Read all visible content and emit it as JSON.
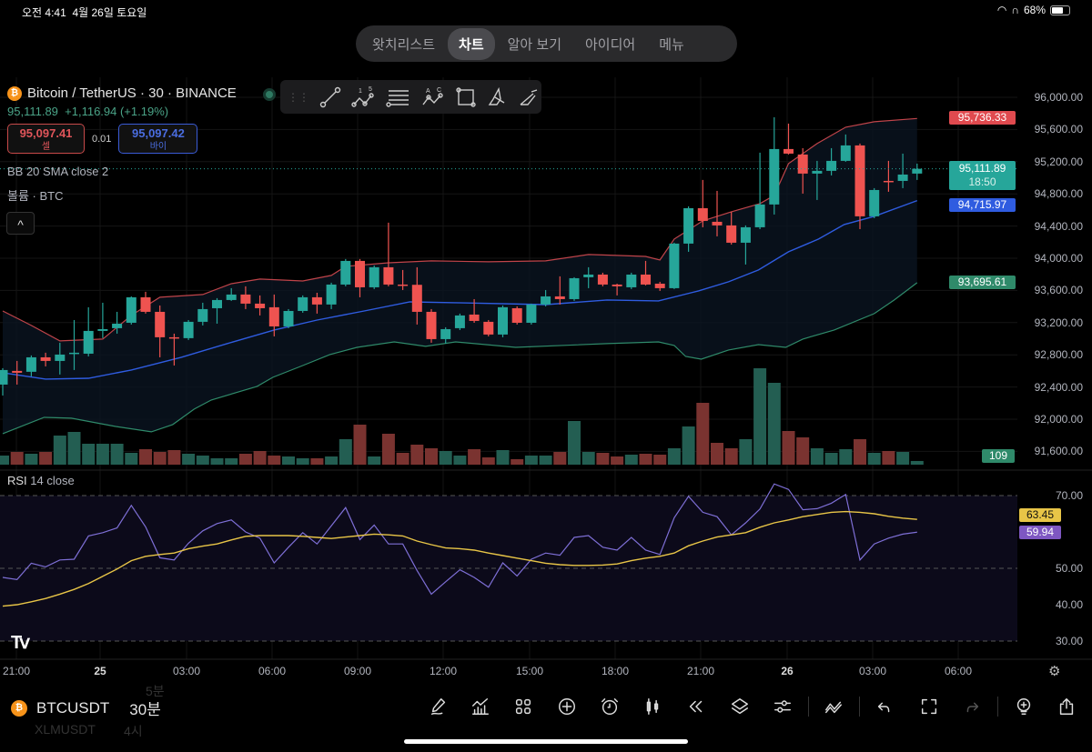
{
  "status_bar": {
    "time": "오전 4:41",
    "date": "4월 26일 토요일",
    "battery": "68%",
    "battery_level": 0.68
  },
  "tabs": [
    {
      "label": "왓치리스트"
    },
    {
      "label": "차트",
      "active": true
    },
    {
      "label": "알아 보기"
    },
    {
      "label": "아이디어"
    },
    {
      "label": "메뉴"
    }
  ],
  "legend": {
    "title": "Bitcoin / TetherUS · 30 · BINANCE",
    "price": "95,111.89",
    "change": "+1,116.94 (+1.19%)",
    "sell_price": "95,097.41",
    "sell_label": "셀",
    "spread": "0.01",
    "buy_price": "95,097.42",
    "buy_label": "바이",
    "bb_indicator": "BB 20 SMA close 2",
    "volume_indicator": "볼륨 · BTC",
    "rsi_indicator_name": "RSI",
    "rsi_indicator_params": "14 close"
  },
  "drawing_tools": [
    "trend-line",
    "xabcd-pattern",
    "fib-retracement",
    "abcd-pattern",
    "rectangle",
    "brush",
    "highlighter"
  ],
  "price_axis": {
    "labels": [
      "96,000.00",
      "95,600.00",
      "95,200.00",
      "94,800.00",
      "94,400.00",
      "94,000.00",
      "93,600.00",
      "93,200.00",
      "92,800.00",
      "92,400.00",
      "92,000.00",
      "91,600.00"
    ],
    "badges": {
      "bb_upper": "95,736.33",
      "last_price": "95,111.89",
      "countdown": "18:50",
      "bb_basis": "94,715.97",
      "bb_lower": "93,695.61",
      "volume": "109"
    }
  },
  "rsi_axis": {
    "labels": [
      "70.00",
      "50.00",
      "40.00",
      "30.00"
    ],
    "rsi_value": "59.94",
    "rsi_ma_value": "63.45"
  },
  "time_axis": [
    {
      "label": "21:00"
    },
    {
      "label": "25",
      "bold": true
    },
    {
      "label": "03:00"
    },
    {
      "label": "06:00"
    },
    {
      "label": "09:00"
    },
    {
      "label": "12:00"
    },
    {
      "label": "15:00"
    },
    {
      "label": "18:00"
    },
    {
      "label": "21:00"
    },
    {
      "label": "26",
      "bold": true
    },
    {
      "label": "03:00"
    },
    {
      "label": "06:00"
    }
  ],
  "colors": {
    "up": "#26a69a",
    "down": "#ef5350",
    "bb_upper": "#c0444a",
    "bb_basis": "#2f5ce0",
    "bb_lower": "#2f8a6a",
    "rsi": "#7e6fd6",
    "rsi_ma": "#e8c547"
  },
  "chart_data": {
    "type": "candlestick",
    "symbol": "BTCUSDT",
    "interval": "30",
    "ylim": [
      91500,
      96200
    ],
    "ohlc": [
      [
        92430,
        92634,
        92294,
        92611
      ],
      [
        92600,
        92724,
        92430,
        92577
      ],
      [
        92589,
        92792,
        92532,
        92769
      ],
      [
        92769,
        92826,
        92656,
        92724
      ],
      [
        92724,
        92950,
        92555,
        92803
      ],
      [
        92814,
        93232,
        92611,
        92826
      ],
      [
        92814,
        93391,
        92780,
        93097
      ],
      [
        93097,
        93447,
        93007,
        93119
      ],
      [
        93131,
        93334,
        93063,
        93187
      ],
      [
        93198,
        93526,
        93176,
        93515
      ],
      [
        93515,
        93583,
        93312,
        93334
      ],
      [
        93334,
        93413,
        92769,
        93018
      ],
      [
        93018,
        93063,
        92667,
        93007
      ],
      [
        93007,
        93232,
        92984,
        93210
      ],
      [
        93210,
        93447,
        93165,
        93368
      ],
      [
        93379,
        93504,
        93187,
        93481
      ],
      [
        93481,
        93628,
        93470,
        93549
      ],
      [
        93549,
        93651,
        93368,
        93436
      ],
      [
        93436,
        93538,
        93289,
        93379
      ],
      [
        93391,
        93549,
        93029,
        93153
      ],
      [
        93153,
        93368,
        93131,
        93345
      ],
      [
        93345,
        93538,
        93323,
        93515
      ],
      [
        93515,
        93571,
        93312,
        93425
      ],
      [
        93425,
        93696,
        93368,
        93673
      ],
      [
        93673,
        93990,
        93651,
        93967
      ],
      [
        93967,
        93990,
        93515,
        93639
      ],
      [
        93639,
        93910,
        93617,
        93888
      ],
      [
        93888,
        94442,
        93651,
        93673
      ],
      [
        93673,
        93854,
        93605,
        93670
      ],
      [
        93670,
        93888,
        93176,
        93334
      ],
      [
        93334,
        93368,
        92950,
        92995
      ],
      [
        92995,
        93142,
        92939,
        93119
      ],
      [
        93131,
        93312,
        93108,
        93289
      ],
      [
        93300,
        93492,
        93198,
        93221
      ],
      [
        93210,
        93232,
        93029,
        93052
      ],
      [
        93052,
        93413,
        93018,
        93391
      ],
      [
        93379,
        93402,
        93176,
        93198
      ],
      [
        93198,
        93436,
        93176,
        93425
      ],
      [
        93425,
        93605,
        93402,
        93526
      ],
      [
        93526,
        93775,
        93425,
        93492
      ],
      [
        93492,
        93764,
        93470,
        93752
      ],
      [
        93764,
        93888,
        93628,
        93797
      ],
      [
        93797,
        93820,
        93651,
        93673
      ],
      [
        93673,
        93684,
        93538,
        93651
      ],
      [
        93639,
        93820,
        93617,
        93797
      ],
      [
        93797,
        93967,
        93662,
        93673
      ],
      [
        93684,
        93707,
        93594,
        93628
      ],
      [
        93628,
        94193,
        93617,
        94182
      ],
      [
        94182,
        94645,
        94080,
        94622
      ],
      [
        94622,
        94973,
        94385,
        94464
      ],
      [
        94453,
        94837,
        94272,
        94408
      ],
      [
        94408,
        94577,
        94170,
        94193
      ],
      [
        94193,
        94408,
        93922,
        94385
      ],
      [
        94385,
        95312,
        94362,
        94668
      ],
      [
        94668,
        95752,
        94543,
        95357
      ],
      [
        95357,
        95673,
        95289,
        95300
      ],
      [
        95289,
        95368,
        94803,
        95052
      ],
      [
        95052,
        95210,
        94724,
        95086
      ],
      [
        95086,
        95368,
        95029,
        95210
      ],
      [
        95210,
        95538,
        95199,
        95402
      ],
      [
        95402,
        95425,
        94362,
        94521
      ],
      [
        94521,
        94871,
        94498,
        94848
      ],
      [
        94961,
        95210,
        94826,
        94950
      ],
      [
        94961,
        95300,
        94871,
        95040
      ],
      [
        95052,
        95176,
        94973,
        95111.89
      ]
    ],
    "volume": [
      270,
      378,
      324,
      378,
      864,
      972,
      621,
      621,
      621,
      351,
      459,
      378,
      432,
      324,
      270,
      189,
      189,
      324,
      405,
      270,
      243,
      189,
      189,
      243,
      756,
      1188,
      243,
      918,
      351,
      594,
      486,
      405,
      270,
      459,
      216,
      432,
      162,
      270,
      270,
      378,
      1296,
      378,
      351,
      243,
      297,
      324,
      297,
      486,
      1134,
      1836,
      648,
      486,
      756,
      2862,
      2430,
      999,
      810,
      486,
      351,
      459,
      756,
      351,
      405,
      378,
      109
    ],
    "bollinger": {
      "upper": [
        [
          0,
          93345
        ],
        [
          2,
          93165
        ],
        [
          4,
          92973
        ],
        [
          7,
          92995
        ],
        [
          9,
          93289
        ],
        [
          11,
          93515
        ],
        [
          14,
          93549
        ],
        [
          16,
          93684
        ],
        [
          18,
          93741
        ],
        [
          21,
          93718
        ],
        [
          23,
          93786
        ],
        [
          24,
          93899
        ],
        [
          27,
          93944
        ],
        [
          30,
          93967
        ],
        [
          34,
          93956
        ],
        [
          38,
          93967
        ],
        [
          41,
          94046
        ],
        [
          43,
          94035
        ],
        [
          45,
          94023
        ],
        [
          46,
          93978
        ],
        [
          47,
          94238
        ],
        [
          49,
          94464
        ],
        [
          51,
          94577
        ],
        [
          53,
          94679
        ],
        [
          54,
          94781
        ],
        [
          55,
          95176
        ],
        [
          57,
          95425
        ],
        [
          59,
          95628
        ],
        [
          61,
          95696
        ],
        [
          64,
          95736.33
        ]
      ],
      "basis": [
        [
          0,
          92577
        ],
        [
          3,
          92498
        ],
        [
          6,
          92509
        ],
        [
          9,
          92611
        ],
        [
          12.5,
          92769
        ],
        [
          15.7,
          92939
        ],
        [
          19,
          93108
        ],
        [
          22,
          93232
        ],
        [
          25.3,
          93345
        ],
        [
          28.5,
          93458
        ],
        [
          31.7,
          93447
        ],
        [
          38,
          93424
        ],
        [
          42.3,
          93481
        ],
        [
          45.9,
          93470
        ],
        [
          48.7,
          93594
        ],
        [
          50.8,
          93707
        ],
        [
          52.9,
          93854
        ],
        [
          55,
          94080
        ],
        [
          57.1,
          94238
        ],
        [
          58.9,
          94419
        ],
        [
          61,
          94521
        ],
        [
          64,
          94715.97
        ]
      ],
      "lower": [
        [
          0,
          91820
        ],
        [
          2.9,
          92023
        ],
        [
          4.8,
          92012
        ],
        [
          7.9,
          91910
        ],
        [
          10.4,
          91843
        ],
        [
          11.9,
          91933
        ],
        [
          13.4,
          92125
        ],
        [
          14.6,
          92238
        ],
        [
          17.8,
          92408
        ],
        [
          18.9,
          92520
        ],
        [
          21,
          92667
        ],
        [
          22.9,
          92803
        ],
        [
          24.8,
          92893
        ],
        [
          27.4,
          92961
        ],
        [
          29.6,
          92905
        ],
        [
          31.7,
          92961
        ],
        [
          35.9,
          92893
        ],
        [
          42.3,
          92939
        ],
        [
          45.9,
          92961
        ],
        [
          47,
          92916
        ],
        [
          47.8,
          92780
        ],
        [
          48.9,
          92746
        ],
        [
          50.8,
          92860
        ],
        [
          52.9,
          92927
        ],
        [
          54.8,
          92893
        ],
        [
          56,
          92995
        ],
        [
          58.2,
          93108
        ],
        [
          61,
          93312
        ],
        [
          62.4,
          93481
        ],
        [
          64,
          93695.61
        ]
      ]
    },
    "rsi": [
      47.5,
      46.9,
      51.4,
      50.4,
      52.3,
      52.5,
      58.9,
      59.8,
      61.1,
      67.3,
      61.4,
      52.9,
      52.3,
      56.9,
      60.3,
      62.3,
      63.3,
      60,
      58.3,
      51.5,
      55.8,
      59.8,
      56.7,
      61.7,
      66.7,
      57.9,
      61.9,
      56.7,
      56.7,
      49.4,
      42.9,
      46.3,
      49.6,
      47.5,
      44.8,
      51.5,
      47.9,
      52.5,
      54.2,
      53.6,
      58.5,
      59,
      55.8,
      55,
      58.5,
      55,
      53.8,
      63.9,
      69.8,
      65.4,
      64.2,
      59.2,
      62.5,
      66.3,
      73.2,
      71.7,
      66.1,
      66.4,
      67.9,
      70.3,
      52.3,
      56.7,
      58.3,
      59.4,
      59.94
    ],
    "rsi_ma": [
      39.6,
      40,
      40.8,
      41.7,
      42.9,
      44.2,
      45.8,
      47.8,
      49.8,
      52.1,
      53.3,
      53.8,
      54.2,
      55.4,
      56.1,
      56.7,
      57.8,
      58.8,
      59,
      59,
      59,
      58.8,
      58.5,
      58.2,
      58.6,
      59,
      59.4,
      59.2,
      58.9,
      57.5,
      56.5,
      55.6,
      55.4,
      55,
      54.2,
      53.5,
      52.8,
      52.1,
      51.4,
      51,
      50.8,
      50.8,
      50.9,
      51.2,
      52.1,
      52.8,
      53.3,
      54.2,
      56.2,
      57.5,
      58.6,
      59.2,
      59.8,
      61.3,
      62.5,
      63.3,
      64.2,
      64.8,
      65.4,
      65.6,
      65.4,
      65,
      64.3,
      63.8,
      63.45
    ],
    "rsi_levels": [
      70,
      50,
      30
    ]
  },
  "bottom_bar": {
    "symbol": "BTCUSDT",
    "interval": "30분",
    "ghost_above_interval": "5분",
    "ghost_below_symbol": "XLMUSDT",
    "ghost_below_interval": "4시",
    "tools": [
      "drawing",
      "indicators",
      "layout",
      "add",
      "alert",
      "chart-type",
      "replay",
      "objects",
      "settings",
      "compare",
      "undo",
      "fullscreen",
      "redo",
      "ideas",
      "share"
    ]
  }
}
